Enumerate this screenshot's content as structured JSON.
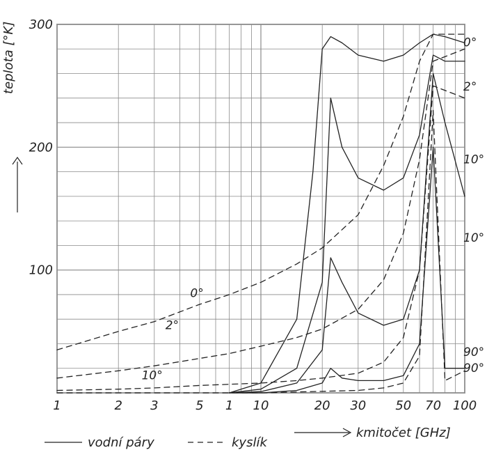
{
  "chart_data": {
    "type": "line",
    "xlabel": "kmitočet [GHz]",
    "ylabel": "teplota [°K]",
    "xlim": [
      1,
      100
    ],
    "ylim": [
      0,
      300
    ],
    "x_scale": "log",
    "grid": true,
    "x_tick_labels": [
      "1",
      "2",
      "3",
      "5",
      "1",
      "10",
      "20",
      "30",
      "50",
      "70",
      "100"
    ],
    "y_tick_values": [
      100,
      200,
      300
    ],
    "y_tick_labels": [
      "100",
      "200",
      "300"
    ],
    "legend": [
      {
        "label": "vodní páry",
        "style": "solid"
      },
      {
        "label": "kyslík",
        "style": "dashed"
      }
    ],
    "series": [
      {
        "name": "0°",
        "style": "dashed",
        "x": [
          1,
          2,
          3,
          5,
          7,
          10,
          15,
          20,
          30,
          40,
          50,
          60,
          70,
          100
        ],
        "y": [
          35,
          50,
          58,
          72,
          80,
          90,
          105,
          118,
          145,
          185,
          225,
          270,
          292,
          292
        ]
      },
      {
        "name": "2°",
        "style": "dashed",
        "x": [
          1,
          2,
          3,
          5,
          7,
          10,
          15,
          20,
          30,
          40,
          50,
          60,
          70,
          100
        ],
        "y": [
          12,
          18,
          22,
          28,
          32,
          38,
          45,
          52,
          68,
          92,
          130,
          190,
          270,
          280
        ]
      },
      {
        "name": "10°",
        "style": "dashed",
        "x": [
          1,
          2,
          3,
          5,
          7,
          10,
          15,
          20,
          30,
          40,
          50,
          60,
          70,
          100
        ],
        "y": [
          2,
          3,
          4,
          6,
          7,
          8,
          10,
          12,
          16,
          25,
          45,
          100,
          250,
          240
        ]
      },
      {
        "name": "90°",
        "style": "dashed",
        "x": [
          1,
          10,
          30,
          40,
          50,
          60,
          70,
          80,
          100
        ],
        "y": [
          0,
          0,
          2,
          4,
          8,
          30,
          230,
          10,
          18
        ]
      },
      {
        "name": "0°",
        "style": "solid",
        "x": [
          7,
          10,
          15,
          18,
          20,
          22,
          25,
          30,
          40,
          50,
          60,
          70,
          80,
          100
        ],
        "y": [
          0,
          8,
          60,
          180,
          280,
          290,
          285,
          275,
          270,
          275,
          285,
          292,
          290,
          285
        ]
      },
      {
        "name": "2°",
        "style": "solid",
        "x": [
          7,
          10,
          15,
          20,
          22,
          25,
          30,
          40,
          50,
          60,
          70,
          80,
          100
        ],
        "y": [
          0,
          3,
          20,
          90,
          240,
          200,
          175,
          165,
          175,
          210,
          275,
          270,
          270
        ]
      },
      {
        "name": "10°",
        "style": "solid",
        "x": [
          7,
          10,
          15,
          20,
          22,
          25,
          30,
          40,
          50,
          60,
          70,
          80,
          100
        ],
        "y": [
          0,
          1,
          8,
          35,
          110,
          90,
          65,
          55,
          60,
          100,
          260,
          220,
          160
        ]
      },
      {
        "name": "90°",
        "style": "solid",
        "x": [
          7,
          10,
          15,
          20,
          22,
          25,
          30,
          40,
          50,
          60,
          70,
          80,
          100
        ],
        "y": [
          0,
          0,
          2,
          8,
          20,
          12,
          10,
          10,
          14,
          40,
          200,
          20,
          20
        ]
      }
    ]
  }
}
